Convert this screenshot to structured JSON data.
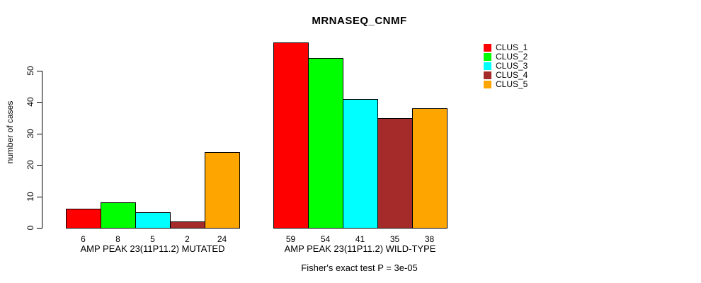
{
  "chart_data": {
    "type": "bar",
    "title": "MRNASEQ_CNMF",
    "ylabel": "number of cases",
    "xlabel": "",
    "yticks": [
      0,
      10,
      20,
      30,
      40,
      50
    ],
    "ylim": [
      0,
      61
    ],
    "grid": false,
    "legend_position": "right",
    "series_labels": [
      "CLUS_1",
      "CLUS_2",
      "CLUS_3",
      "CLUS_4",
      "CLUS_5"
    ],
    "colors": [
      "#FF0000",
      "#00FF00",
      "#00FFFF",
      "#A52A2A",
      "#FFA500"
    ],
    "bar_border_color": "#000000",
    "groups": [
      {
        "label": "AMP PEAK 23(11P11.2) MUTATED",
        "values": [
          6,
          8,
          5,
          2,
          24
        ]
      },
      {
        "label": "AMP PEAK 23(11P11.2) WILD-TYPE",
        "values": [
          59,
          54,
          41,
          35,
          38
        ]
      }
    ],
    "show_value_labels": true,
    "annotation": "Fisher's exact test P = 3e-05"
  }
}
